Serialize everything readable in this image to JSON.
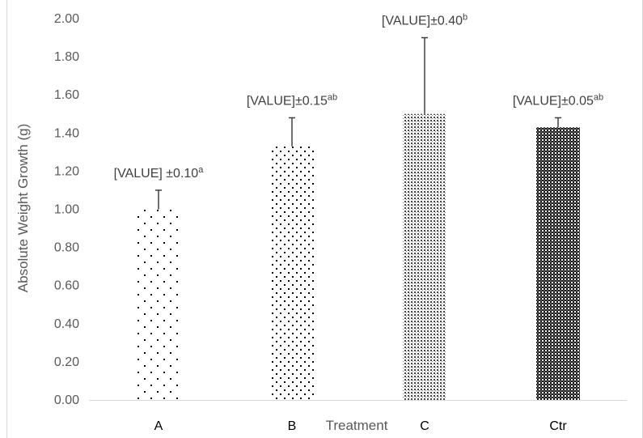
{
  "chart_data": {
    "type": "bar",
    "xlabel": "Treatment",
    "ylabel": "Absolute Weight Growth (g)",
    "ylim": [
      0,
      2.0
    ],
    "yticks": [
      0.0,
      0.2,
      0.4,
      0.6,
      0.8,
      1.0,
      1.2,
      1.4,
      1.6,
      1.8,
      2.0
    ],
    "ytick_labels": [
      "0.00",
      "0.20",
      "0.40",
      "0.60",
      "0.80",
      "1.00",
      "1.20",
      "1.40",
      "1.60",
      "1.80",
      "2.00"
    ],
    "grid": false,
    "categories": [
      "A",
      "B",
      "C",
      "Ctr"
    ],
    "values": [
      1.0,
      1.33,
      1.5,
      1.43
    ],
    "errors": [
      0.1,
      0.15,
      0.4,
      0.05
    ],
    "data_labels": [
      {
        "text": "[VALUE] ±0.10",
        "sup": "a"
      },
      {
        "text": "[VALUE]±0.15",
        "sup": "ab"
      },
      {
        "text": "[VALUE]±0.40",
        "sup": "b"
      },
      {
        "text": "[VALUE]±0.05",
        "sup": "ab"
      }
    ],
    "patterns": [
      "sparse-dots",
      "dots",
      "dense-dots",
      "checker"
    ]
  }
}
